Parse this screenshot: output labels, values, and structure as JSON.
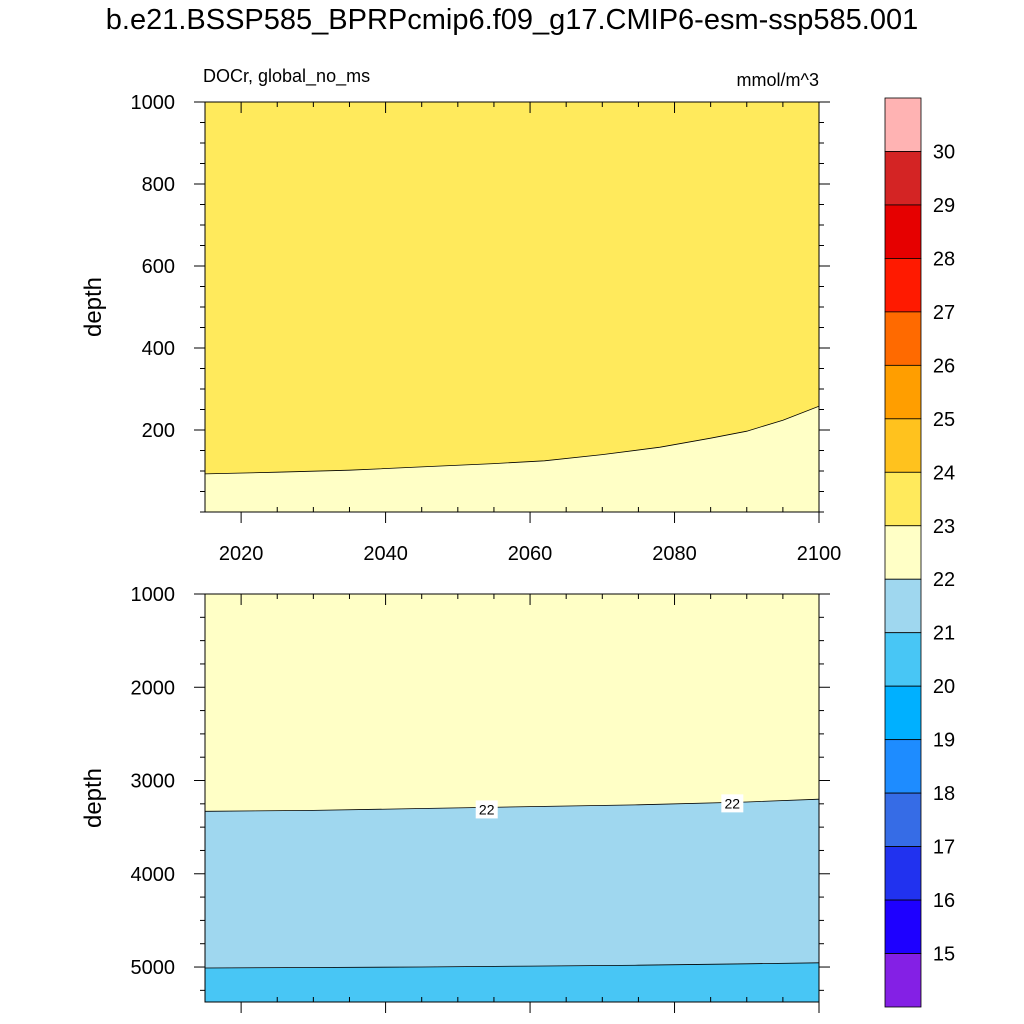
{
  "title": "b.e21.BSSP585_BPRPcmip6.f09_g17.CMIP6-esm-ssp585.001",
  "chart_data": [
    {
      "type": "heatmap",
      "subtitle_left": "DOCr, global_no_ms",
      "subtitle_right": "mmol/m^3",
      "xlabel": "",
      "ylabel": "depth",
      "xlim": [
        2015,
        2100
      ],
      "ylim": [
        1000,
        0
      ],
      "x_ticks": [
        "2020",
        "2040",
        "2060",
        "2080",
        "2100"
      ],
      "y_ticks": [
        "200",
        "400",
        "600",
        "800",
        "1000"
      ],
      "regions": [
        {
          "level": "23-24",
          "color": "#FFEA5C"
        },
        {
          "level": "22-23",
          "color": "#FFFFC6"
        }
      ],
      "contours": [
        {
          "level": 23,
          "x": [
            2015,
            2025,
            2035,
            2045,
            2055,
            2062,
            2070,
            2078,
            2085,
            2090,
            2095,
            2100
          ],
          "y": [
            93,
            97,
            102,
            110,
            118,
            125,
            140,
            158,
            180,
            197,
            224,
            258
          ]
        }
      ],
      "contour_labels": []
    },
    {
      "type": "heatmap",
      "xlabel": "",
      "ylabel": "depth",
      "xlim": [
        2015,
        2100
      ],
      "ylim": [
        1000,
        5375
      ],
      "y_ticks": [
        "1000",
        "2000",
        "3000",
        "4000",
        "5000"
      ],
      "regions": [
        {
          "level": "22-23",
          "color": "#FFFFC6"
        },
        {
          "level": "21-22",
          "color": "#9FD7EF"
        },
        {
          "level": "20-21",
          "color": "#48C6F5"
        }
      ],
      "contours": [
        {
          "level": 22,
          "x": [
            2015,
            2030,
            2045,
            2060,
            2075,
            2090,
            2100
          ],
          "y": [
            3330,
            3320,
            3300,
            3280,
            3260,
            3230,
            3200
          ]
        },
        {
          "level": 21,
          "x": [
            2015,
            2030,
            2045,
            2060,
            2075,
            2090,
            2100
          ],
          "y": [
            5010,
            5005,
            5000,
            4990,
            4980,
            4965,
            4955
          ]
        }
      ],
      "contour_labels": [
        {
          "text": "22",
          "x": 2054,
          "y": 3310
        },
        {
          "text": "22",
          "x": 2088,
          "y": 3245
        }
      ]
    }
  ],
  "colorbar": {
    "colors": [
      "#8420E5",
      "#1E00FF",
      "#2132EF",
      "#366CE6",
      "#1E8CFF",
      "#00B0FF",
      "#48C6F5",
      "#9FD7EF",
      "#FFFFC6",
      "#FFEA5C",
      "#FFC21E",
      "#FF9E00",
      "#FF6A00",
      "#FF1A00",
      "#E60000",
      "#D42424",
      "#FFB3B3"
    ],
    "labels": [
      "15",
      "16",
      "17",
      "18",
      "19",
      "20",
      "21",
      "22",
      "23",
      "24",
      "25",
      "26",
      "27",
      "28",
      "29",
      "30"
    ]
  }
}
